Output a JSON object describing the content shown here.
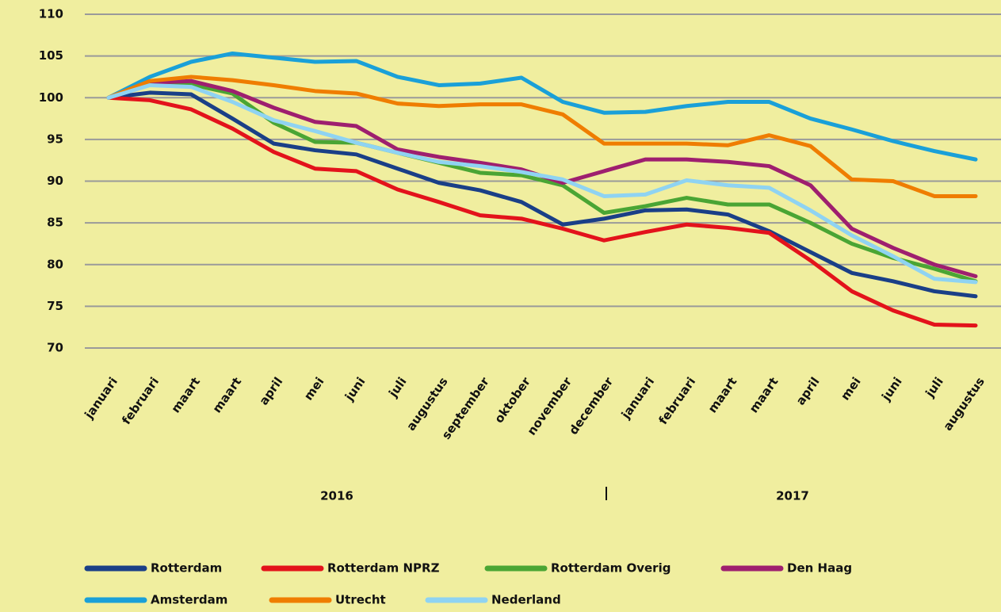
{
  "chart_data": {
    "type": "line",
    "categories": [
      "januari",
      "februari",
      "maart",
      "maart",
      "april",
      "mei",
      "juni",
      "juli",
      "augustus",
      "september",
      "oktober",
      "november",
      "december",
      "januari",
      "februari",
      "maart",
      "maart",
      "april",
      "mei",
      "juni",
      "juli",
      "augustus"
    ],
    "year_labels": [
      "2016",
      "2017"
    ],
    "series": [
      {
        "name": "Rotterdam",
        "color": "#1a3f87",
        "values": [
          100,
          100.6,
          100.4,
          97.5,
          94.5,
          93.7,
          93.2,
          91.5,
          89.8,
          88.9,
          87.5,
          84.8,
          85.5,
          86.5,
          86.6,
          86,
          84,
          81.5,
          79,
          78,
          76.8,
          76.2
        ]
      },
      {
        "name": "Rotterdam NPRZ",
        "color": "#e3131b",
        "values": [
          100,
          99.7,
          98.6,
          96.3,
          93.5,
          91.5,
          91.2,
          89,
          87.5,
          85.9,
          85.5,
          84.3,
          82.9,
          83.9,
          84.8,
          84.4,
          83.8,
          80.5,
          76.8,
          74.5,
          72.8,
          72.7
        ]
      },
      {
        "name": "Rotterdam Overig",
        "color": "#4aa534",
        "values": [
          100,
          101.8,
          101.6,
          100.5,
          97,
          94.7,
          94.6,
          93.4,
          92.2,
          91,
          90.7,
          89.5,
          86.2,
          87,
          88,
          87.2,
          87.2,
          85,
          82.5,
          80.8,
          79.5,
          78
        ]
      },
      {
        "name": "Den Haag",
        "color": "#9e1f6f",
        "values": [
          100,
          101.8,
          102,
          100.8,
          98.8,
          97.1,
          96.6,
          93.8,
          92.9,
          92.2,
          91.4,
          89.8,
          91.2,
          92.6,
          92.6,
          92.3,
          91.8,
          89.5,
          84.3,
          82,
          80,
          78.6
        ]
      },
      {
        "name": "Amsterdam",
        "color": "#1aa0d8",
        "values": [
          100,
          102.5,
          104.3,
          105.3,
          104.8,
          104.3,
          104.4,
          102.5,
          101.5,
          101.7,
          102.4,
          99.5,
          98.2,
          98.3,
          99,
          99.5,
          99.5,
          97.5,
          96.2,
          94.8,
          93.6,
          92.6
        ]
      },
      {
        "name": "Utrecht",
        "color": "#ef7d00",
        "values": [
          100,
          102,
          102.5,
          102.1,
          101.5,
          100.8,
          100.5,
          99.3,
          99,
          99.2,
          99.2,
          98,
          94.5,
          94.5,
          94.5,
          94.3,
          95.5,
          94.2,
          90.2,
          90,
          88.2,
          88.2
        ]
      },
      {
        "name": "Nederland",
        "color": "#8fd3f2",
        "values": [
          100,
          101.5,
          101.3,
          99.5,
          97.3,
          96,
          94.6,
          93.4,
          92.3,
          91.8,
          91.1,
          90.2,
          88.2,
          88.4,
          90.1,
          89.5,
          89.2,
          86.5,
          83.5,
          81,
          78.3,
          77.9
        ]
      }
    ],
    "ylim": [
      70,
      110
    ],
    "yticks": [
      70,
      75,
      80,
      85,
      90,
      95,
      100,
      105,
      110
    ],
    "grid": true
  }
}
